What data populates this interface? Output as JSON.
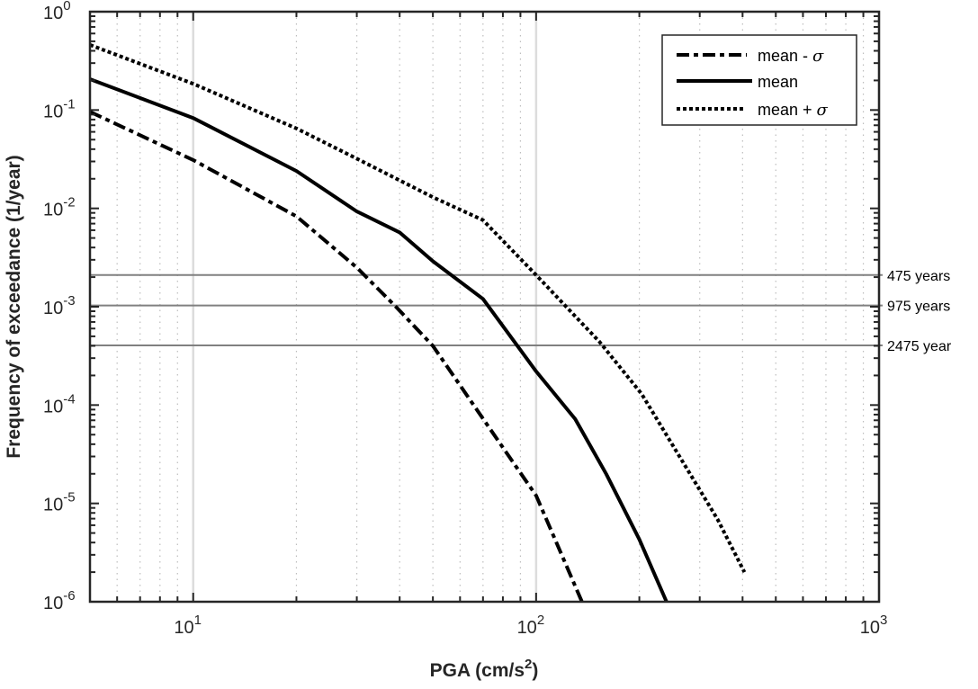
{
  "chart_data": {
    "type": "line",
    "xlabel": "PGA (cm/s",
    "xlabel_sup": "2",
    "xlabel_end": ")",
    "ylabel": "Frequency of exceedance (1/year)",
    "xscale": "log",
    "yscale": "log",
    "xlim": [
      5,
      1000
    ],
    "ylim": [
      1e-06,
      1
    ],
    "grid": true,
    "legend_position": "top-right",
    "x_ticks": [
      {
        "base": "10",
        "exp": "1",
        "value": 10
      },
      {
        "base": "10",
        "exp": "2",
        "value": 100
      },
      {
        "base": "10",
        "exp": "3",
        "value": 1000
      }
    ],
    "y_ticks": [
      {
        "base": "10",
        "exp": "0",
        "value": 1
      },
      {
        "base": "10",
        "exp": "-1",
        "value": 0.1
      },
      {
        "base": "10",
        "exp": "-2",
        "value": 0.01
      },
      {
        "base": "10",
        "exp": "-3",
        "value": 0.001
      },
      {
        "base": "10",
        "exp": "-4",
        "value": 0.0001
      },
      {
        "base": "10",
        "exp": "-5",
        "value": 1e-05
      },
      {
        "base": "10",
        "exp": "-6",
        "value": 1e-06
      }
    ],
    "series": [
      {
        "name": "mean - σ",
        "style": "dashdot",
        "x": [
          5,
          10,
          20,
          30,
          39,
          50,
          80,
          100,
          136
        ],
        "y": [
          0.096,
          0.031,
          0.0083,
          0.0025,
          0.001,
          0.0004,
          3.7e-05,
          1.2e-05,
          1e-06
        ]
      },
      {
        "name": "mean",
        "style": "solid",
        "x": [
          5,
          10,
          20,
          30,
          40,
          50,
          70,
          100,
          130,
          160,
          200,
          240
        ],
        "y": [
          0.206,
          0.083,
          0.024,
          0.0093,
          0.0057,
          0.0029,
          0.0012,
          0.00022,
          7.2e-05,
          2e-05,
          4.3e-06,
          1e-06
        ]
      },
      {
        "name": "mean + σ",
        "style": "dotted",
        "x": [
          5,
          10,
          20,
          30,
          50,
          70,
          100,
          153,
          203,
          338,
          405
        ],
        "y": [
          0.46,
          0.185,
          0.065,
          0.032,
          0.013,
          0.0076,
          0.0021,
          0.00044,
          0.00013,
          6.9e-06,
          2e-06
        ]
      }
    ],
    "reference_lines": [
      {
        "label": "475 years",
        "y": 0.0021
      },
      {
        "label": "975 years",
        "y": 0.00103
      },
      {
        "label": "2475 year",
        "y": 0.000404
      }
    ],
    "legend_entries": [
      "mean - ",
      "mean",
      "mean + "
    ],
    "sigma_symbol": "σ"
  }
}
